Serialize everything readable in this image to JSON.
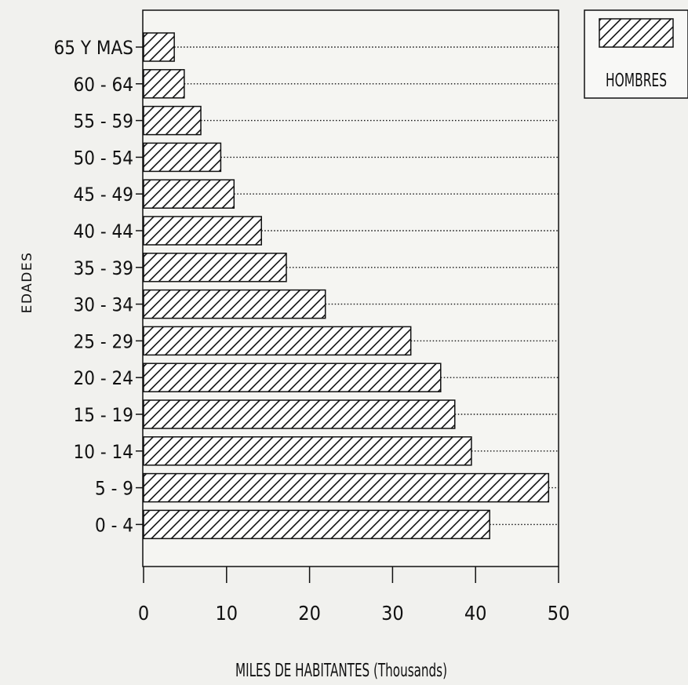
{
  "chart_data": {
    "type": "bar",
    "orientation": "horizontal",
    "title": "",
    "xlabel": "MILES DE HABITANTES (Thousands)",
    "ylabel": "EDADES",
    "xlim": [
      0,
      50
    ],
    "x_ticks": [
      0,
      10,
      20,
      30,
      40,
      50
    ],
    "categories": [
      "65 Y MAS",
      "60 - 64",
      "55 - 59",
      "50 - 54",
      "45 - 49",
      "40 - 44",
      "35 - 39",
      "30 - 34",
      "25 - 29",
      "20 - 24",
      "15 - 19",
      "10 - 14",
      "5 - 9",
      "0 - 4"
    ],
    "series": [
      {
        "name": "HOMBRES",
        "values": [
          3.7,
          4.9,
          6.9,
          9.3,
          10.9,
          14.2,
          17.2,
          21.9,
          32.2,
          35.8,
          37.5,
          39.5,
          48.8,
          41.7
        ]
      }
    ],
    "grid": "dotted horizontal leader lines",
    "legend": "top-right",
    "pattern": "diagonal-hatch",
    "colors": {
      "ink": "#111111",
      "background": "#f1f1ee",
      "frame_bg": "#f5f5f2"
    }
  }
}
